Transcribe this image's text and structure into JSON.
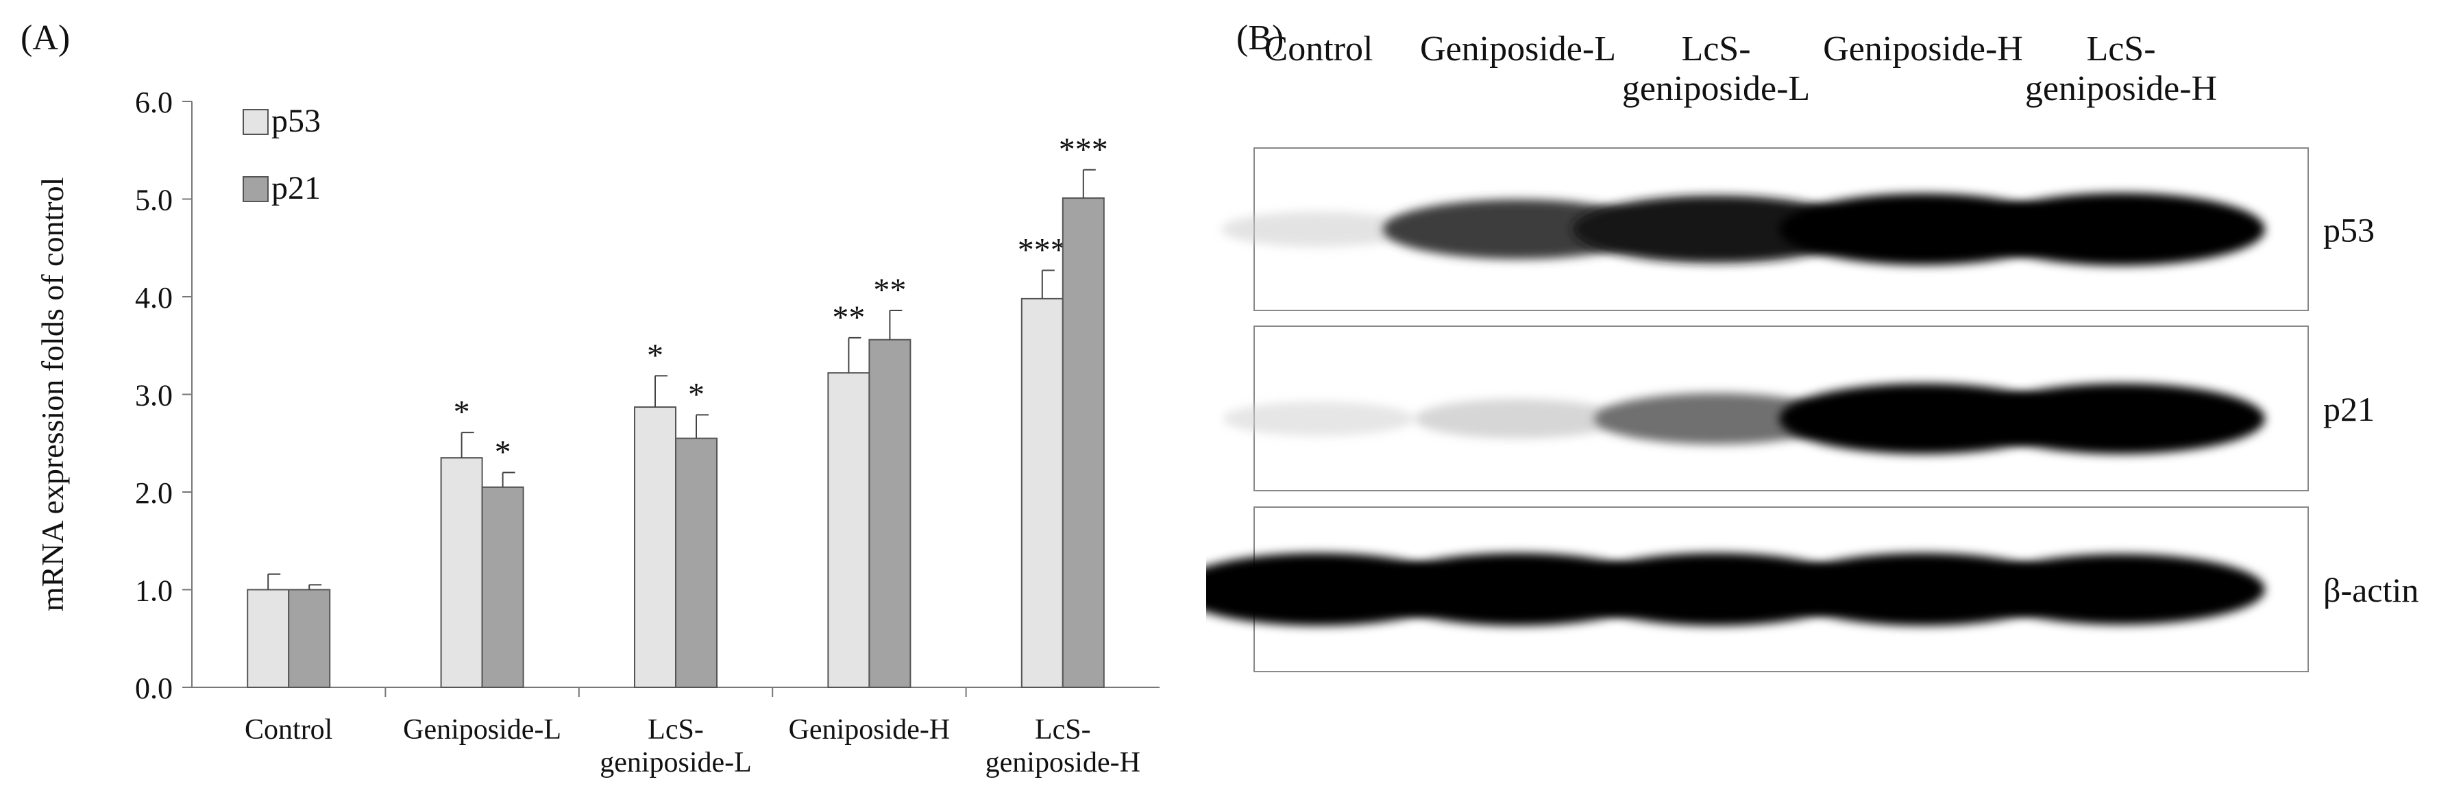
{
  "panel_a_label": "(A)",
  "panel_b_label": "(B)",
  "chart_data": {
    "type": "bar",
    "title": "",
    "xlabel": "",
    "ylabel": "mRNA expression folds of control",
    "ylim": [
      0,
      6
    ],
    "yticks": [
      "0.0",
      "1.0",
      "2.0",
      "3.0",
      "4.0",
      "5.0",
      "6.0"
    ],
    "categories": [
      [
        "Control"
      ],
      [
        "Geniposide-L"
      ],
      [
        "LcS-",
        "geniposide-L"
      ],
      [
        "Geniposide-H"
      ],
      [
        "LcS-",
        "geniposide-H"
      ]
    ],
    "series": [
      {
        "name": "p53",
        "color": "#e4e4e4",
        "values": [
          1.0,
          2.35,
          2.87,
          3.22,
          3.98
        ],
        "errors": [
          0.16,
          0.26,
          0.32,
          0.36,
          0.29
        ],
        "significance": [
          "",
          "*",
          "*",
          "**",
          "***"
        ]
      },
      {
        "name": "p21",
        "color": "#a3a3a3",
        "values": [
          1.0,
          2.05,
          2.55,
          3.56,
          5.01
        ],
        "errors": [
          0.05,
          0.15,
          0.24,
          0.3,
          0.29
        ],
        "significance": [
          "",
          "*",
          "*",
          "**",
          "***"
        ]
      }
    ],
    "grid": false,
    "legend_position": "top-left"
  },
  "blot": {
    "lane_labels": [
      [
        "Control"
      ],
      [
        "Geniposide-L"
      ],
      [
        "LcS-",
        "geniposide-L"
      ],
      [
        "Geniposide-H"
      ],
      [
        "LcS-",
        "geniposide-H"
      ]
    ],
    "rows": [
      {
        "protein": "p53",
        "intensities": [
          0.12,
          0.7,
          0.88,
          0.97,
          1.0
        ]
      },
      {
        "protein": "p21",
        "intensities": [
          0.1,
          0.22,
          0.5,
          0.95,
          0.95
        ]
      },
      {
        "protein": "β-actin",
        "intensities": [
          1.0,
          1.0,
          1.0,
          1.0,
          0.95
        ]
      }
    ]
  }
}
